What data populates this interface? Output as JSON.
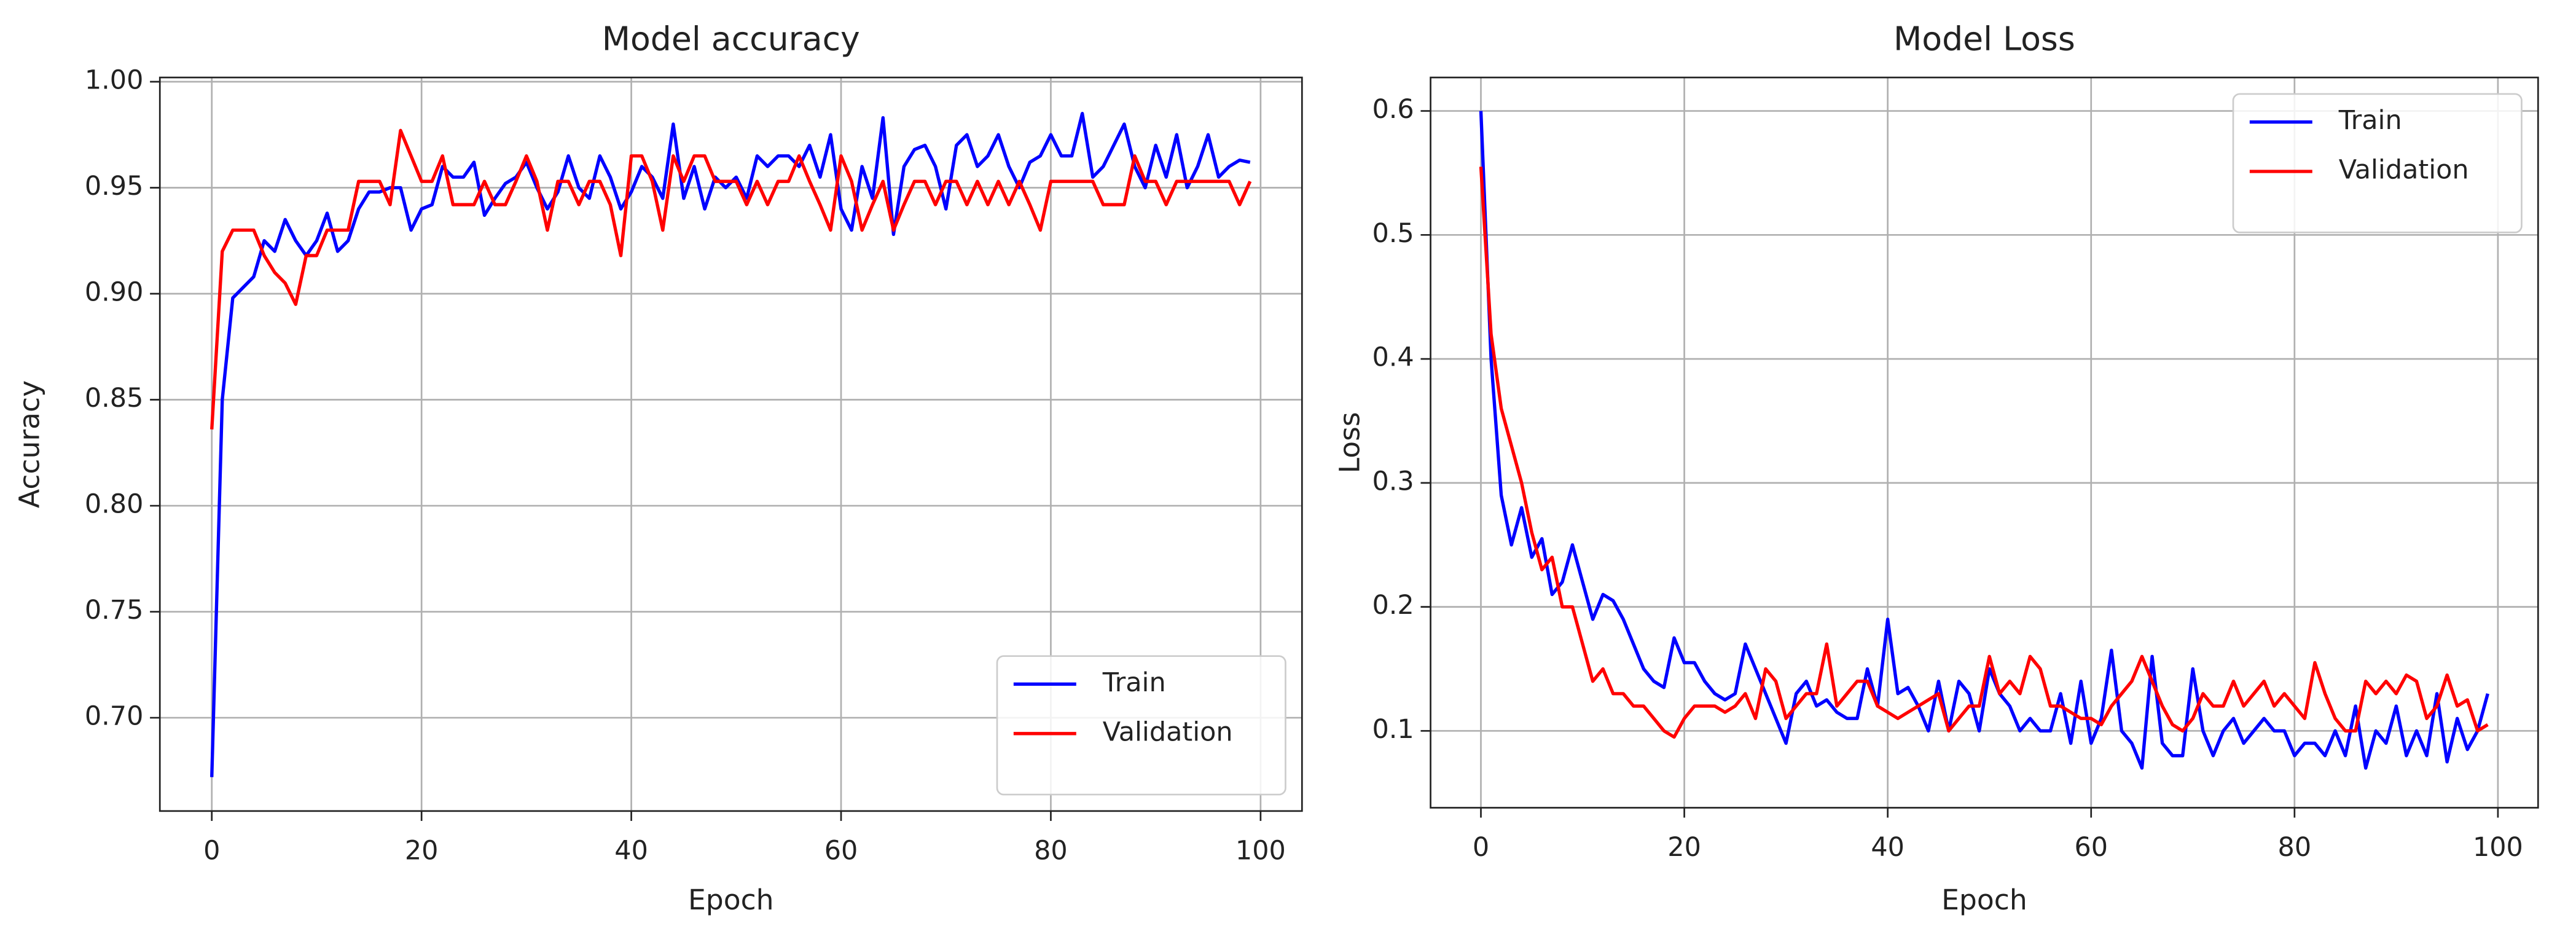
{
  "chart_data": [
    {
      "type": "line",
      "title": "Model accuracy",
      "xlabel": "Epoch",
      "ylabel": "Accuracy",
      "x": [
        0,
        1,
        2,
        3,
        4,
        5,
        6,
        7,
        8,
        9,
        10,
        11,
        12,
        13,
        14,
        15,
        16,
        17,
        18,
        19,
        20,
        21,
        22,
        23,
        24,
        25,
        26,
        27,
        28,
        29,
        30,
        31,
        32,
        33,
        34,
        35,
        36,
        37,
        38,
        39,
        40,
        41,
        42,
        43,
        44,
        45,
        46,
        47,
        48,
        49,
        50,
        51,
        52,
        53,
        54,
        55,
        56,
        57,
        58,
        59,
        60,
        61,
        62,
        63,
        64,
        65,
        66,
        67,
        68,
        69,
        70,
        71,
        72,
        73,
        74,
        75,
        76,
        77,
        78,
        79,
        80,
        81,
        82,
        83,
        84,
        85,
        86,
        87,
        88,
        89,
        90,
        91,
        92,
        93,
        94,
        95,
        96,
        97,
        98,
        99
      ],
      "series": [
        {
          "name": "Train",
          "color": "#0000ff",
          "values": [
            0.672,
            0.85,
            0.898,
            0.903,
            0.908,
            0.925,
            0.92,
            0.935,
            0.925,
            0.918,
            0.925,
            0.938,
            0.92,
            0.925,
            0.94,
            0.948,
            0.948,
            0.95,
            0.95,
            0.93,
            0.94,
            0.942,
            0.96,
            0.955,
            0.955,
            0.962,
            0.937,
            0.945,
            0.952,
            0.955,
            0.962,
            0.95,
            0.94,
            0.948,
            0.965,
            0.95,
            0.945,
            0.965,
            0.955,
            0.94,
            0.948,
            0.96,
            0.955,
            0.945,
            0.98,
            0.945,
            0.96,
            0.94,
            0.955,
            0.95,
            0.955,
            0.945,
            0.965,
            0.96,
            0.965,
            0.965,
            0.96,
            0.97,
            0.955,
            0.975,
            0.94,
            0.93,
            0.96,
            0.945,
            0.983,
            0.928,
            0.96,
            0.968,
            0.97,
            0.96,
            0.94,
            0.97,
            0.975,
            0.96,
            0.965,
            0.975,
            0.96,
            0.95,
            0.962,
            0.965,
            0.975,
            0.965,
            0.965,
            0.985,
            0.955,
            0.96,
            0.97,
            0.98,
            0.96,
            0.95,
            0.97,
            0.955,
            0.975,
            0.95,
            0.96,
            0.975,
            0.955,
            0.96,
            0.963,
            0.962
          ]
        },
        {
          "name": "Validation",
          "color": "#ff0000",
          "values": [
            0.836,
            0.92,
            0.93,
            0.93,
            0.93,
            0.918,
            0.91,
            0.905,
            0.895,
            0.918,
            0.918,
            0.93,
            0.93,
            0.93,
            0.953,
            0.953,
            0.953,
            0.942,
            0.977,
            0.965,
            0.953,
            0.953,
            0.965,
            0.942,
            0.942,
            0.942,
            0.953,
            0.942,
            0.942,
            0.953,
            0.965,
            0.953,
            0.93,
            0.953,
            0.953,
            0.942,
            0.953,
            0.953,
            0.942,
            0.918,
            0.965,
            0.965,
            0.953,
            0.93,
            0.965,
            0.953,
            0.965,
            0.965,
            0.953,
            0.953,
            0.953,
            0.942,
            0.953,
            0.942,
            0.953,
            0.953,
            0.965,
            0.953,
            0.942,
            0.93,
            0.965,
            0.953,
            0.93,
            0.942,
            0.953,
            0.93,
            0.942,
            0.953,
            0.953,
            0.942,
            0.953,
            0.953,
            0.942,
            0.953,
            0.942,
            0.953,
            0.942,
            0.953,
            0.942,
            0.93,
            0.953,
            0.953,
            0.953,
            0.953,
            0.953,
            0.942,
            0.942,
            0.942,
            0.965,
            0.953,
            0.953,
            0.942,
            0.953,
            0.953,
            0.953,
            0.953,
            0.953,
            0.953,
            0.942,
            0.953
          ]
        }
      ],
      "xlim": [
        -4.95,
        103.95
      ],
      "xticks": [
        0,
        20,
        40,
        60,
        80,
        100
      ],
      "ylim": [
        0.656,
        1.002
      ],
      "yticks": [
        {
          "value": 0.7,
          "label": "0.70"
        },
        {
          "value": 0.75,
          "label": "0.75"
        },
        {
          "value": 0.8,
          "label": "0.80"
        },
        {
          "value": 0.85,
          "label": "0.85"
        },
        {
          "value": 0.9,
          "label": "0.90"
        },
        {
          "value": 0.95,
          "label": "0.95"
        },
        {
          "value": 1.0,
          "label": "1.00"
        }
      ],
      "grid": true,
      "legend": "lower right"
    },
    {
      "type": "line",
      "title": "Model Loss",
      "xlabel": "Epoch",
      "ylabel": "Loss",
      "x": [
        0,
        1,
        2,
        3,
        4,
        5,
        6,
        7,
        8,
        9,
        10,
        11,
        12,
        13,
        14,
        15,
        16,
        17,
        18,
        19,
        20,
        21,
        22,
        23,
        24,
        25,
        26,
        27,
        28,
        29,
        30,
        31,
        32,
        33,
        34,
        35,
        36,
        37,
        38,
        39,
        40,
        41,
        42,
        43,
        44,
        45,
        46,
        47,
        48,
        49,
        50,
        51,
        52,
        53,
        54,
        55,
        56,
        57,
        58,
        59,
        60,
        61,
        62,
        63,
        64,
        65,
        66,
        67,
        68,
        69,
        70,
        71,
        72,
        73,
        74,
        75,
        76,
        77,
        78,
        79,
        80,
        81,
        82,
        83,
        84,
        85,
        86,
        87,
        88,
        89,
        90,
        91,
        92,
        93,
        94,
        95,
        96,
        97,
        98,
        99
      ],
      "series": [
        {
          "name": "Train",
          "color": "#0000ff",
          "values": [
            0.6,
            0.4,
            0.29,
            0.25,
            0.28,
            0.24,
            0.255,
            0.21,
            0.22,
            0.25,
            0.22,
            0.19,
            0.21,
            0.205,
            0.19,
            0.17,
            0.15,
            0.14,
            0.135,
            0.175,
            0.155,
            0.155,
            0.14,
            0.13,
            0.125,
            0.13,
            0.17,
            0.15,
            0.13,
            0.11,
            0.09,
            0.13,
            0.14,
            0.12,
            0.125,
            0.115,
            0.11,
            0.11,
            0.15,
            0.12,
            0.19,
            0.13,
            0.135,
            0.12,
            0.1,
            0.14,
            0.1,
            0.14,
            0.13,
            0.1,
            0.15,
            0.13,
            0.12,
            0.1,
            0.11,
            0.1,
            0.1,
            0.13,
            0.09,
            0.14,
            0.09,
            0.11,
            0.165,
            0.1,
            0.09,
            0.07,
            0.16,
            0.09,
            0.08,
            0.08,
            0.15,
            0.1,
            0.08,
            0.1,
            0.11,
            0.09,
            0.1,
            0.11,
            0.1,
            0.1,
            0.08,
            0.09,
            0.09,
            0.08,
            0.1,
            0.08,
            0.12,
            0.07,
            0.1,
            0.09,
            0.12,
            0.08,
            0.1,
            0.08,
            0.13,
            0.075,
            0.11,
            0.085,
            0.1,
            0.13
          ]
        },
        {
          "name": "Validation",
          "color": "#ff0000",
          "values": [
            0.555,
            0.42,
            0.36,
            0.33,
            0.3,
            0.26,
            0.23,
            0.24,
            0.2,
            0.2,
            0.17,
            0.14,
            0.15,
            0.13,
            0.13,
            0.12,
            0.12,
            0.11,
            0.1,
            0.095,
            0.11,
            0.12,
            0.12,
            0.12,
            0.115,
            0.12,
            0.13,
            0.11,
            0.15,
            0.14,
            0.11,
            0.12,
            0.13,
            0.13,
            0.17,
            0.12,
            0.13,
            0.14,
            0.14,
            0.12,
            0.115,
            0.11,
            0.115,
            0.12,
            0.125,
            0.13,
            0.1,
            0.11,
            0.12,
            0.12,
            0.16,
            0.13,
            0.14,
            0.13,
            0.16,
            0.15,
            0.12,
            0.12,
            0.115,
            0.11,
            0.11,
            0.105,
            0.12,
            0.13,
            0.14,
            0.16,
            0.14,
            0.12,
            0.105,
            0.1,
            0.11,
            0.13,
            0.12,
            0.12,
            0.14,
            0.12,
            0.13,
            0.14,
            0.12,
            0.13,
            0.12,
            0.11,
            0.155,
            0.13,
            0.11,
            0.1,
            0.1,
            0.14,
            0.13,
            0.14,
            0.13,
            0.145,
            0.14,
            0.11,
            0.12,
            0.145,
            0.12,
            0.125,
            0.1,
            0.105
          ]
        }
      ],
      "xlim": [
        -4.95,
        103.95
      ],
      "xticks": [
        0,
        20,
        40,
        60,
        80,
        100
      ],
      "ylim": [
        0.038,
        0.627
      ],
      "yticks": [
        0.1,
        0.2,
        0.3,
        0.4,
        0.5,
        0.6
      ],
      "grid": true,
      "legend": "upper right"
    }
  ]
}
